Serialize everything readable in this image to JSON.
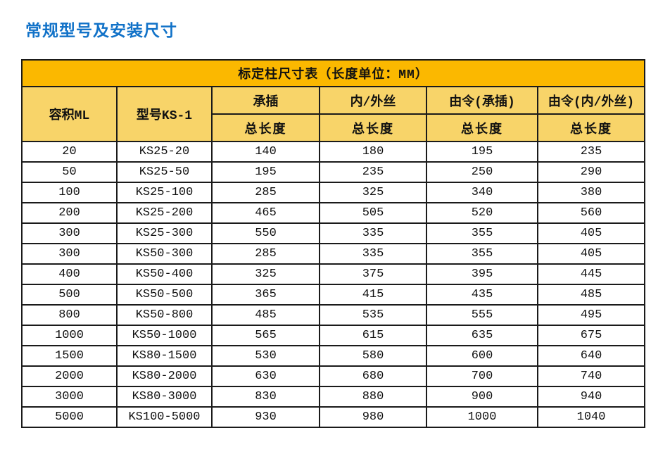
{
  "page": {
    "title": "常规型号及安装尺寸"
  },
  "table": {
    "banner": "标定柱尺寸表（长度单位：MM）",
    "volume_header": "容积ML",
    "model_header": "型号KS-1",
    "group_headers": [
      "承插",
      "内/外丝",
      "由令(承插)",
      "由令(内/外丝)"
    ],
    "sub_headers": [
      "总长度",
      "总长度",
      "总长度",
      "总长度"
    ],
    "rows": [
      [
        "20",
        "KS25-20",
        "140",
        "180",
        "195",
        "235"
      ],
      [
        "50",
        "KS25-50",
        "195",
        "235",
        "250",
        "290"
      ],
      [
        "100",
        "KS25-100",
        "285",
        "325",
        "340",
        "380"
      ],
      [
        "200",
        "KS25-200",
        "465",
        "505",
        "520",
        "560"
      ],
      [
        "300",
        "KS25-300",
        "550",
        "335",
        "355",
        "405"
      ],
      [
        "300",
        "KS50-300",
        "285",
        "335",
        "355",
        "405"
      ],
      [
        "400",
        "KS50-400",
        "325",
        "375",
        "395",
        "445"
      ],
      [
        "500",
        "KS50-500",
        "365",
        "415",
        "435",
        "485"
      ],
      [
        "800",
        "KS50-800",
        "485",
        "535",
        "555",
        "495"
      ],
      [
        "1000",
        "KS50-1000",
        "565",
        "615",
        "635",
        "675"
      ],
      [
        "1500",
        "KS80-1500",
        "530",
        "580",
        "600",
        "640"
      ],
      [
        "2000",
        "KS80-2000",
        "630",
        "680",
        "700",
        "740"
      ],
      [
        "3000",
        "KS80-3000",
        "830",
        "880",
        "900",
        "940"
      ],
      [
        "5000",
        "KS100-5000",
        "930",
        "980",
        "1000",
        "1040"
      ]
    ]
  },
  "colors": {
    "title_blue": "#1172C8",
    "banner_bg": "#FBB800",
    "volume_bg": "#C05B1E",
    "model_bg": "#F2C6A2",
    "subheader_bg": "#F8D469",
    "border": "#1A1A1A"
  }
}
